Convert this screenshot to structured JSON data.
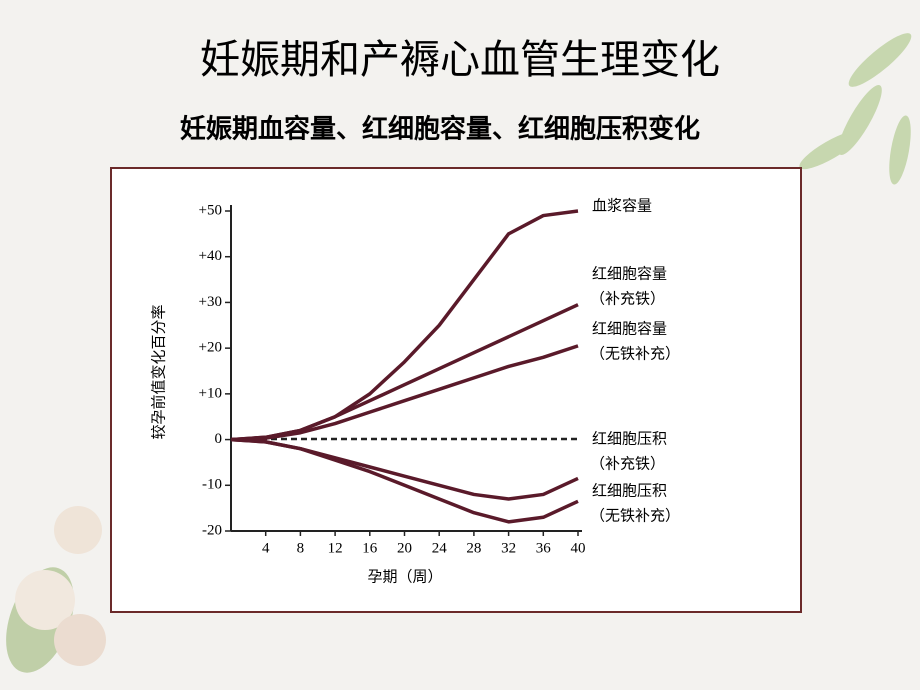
{
  "slide": {
    "title": "妊娠期和产褥心血管生理变化"
  },
  "chart_data": {
    "type": "line",
    "title": "妊娠期血容量、红细胞容量、红细胞压积变化",
    "x_label": "孕期（周）",
    "y_label": "较孕前值变化百分率",
    "x": [
      0,
      4,
      8,
      12,
      16,
      20,
      24,
      28,
      32,
      36,
      40
    ],
    "xlim": [
      0,
      40
    ],
    "xticks": [
      4,
      8,
      12,
      16,
      20,
      24,
      28,
      32,
      36,
      40
    ],
    "ylim": [
      -20,
      50
    ],
    "yticks": [
      {
        "value": 50,
        "label": "+50"
      },
      {
        "value": 40,
        "label": "+40"
      },
      {
        "value": 30,
        "label": "+30"
      },
      {
        "value": 20,
        "label": "+20"
      },
      {
        "value": 10,
        "label": "+10"
      },
      0,
      -10,
      -20
    ],
    "series": [
      {
        "name": "血浆容量",
        "color": "#5a1a2a",
        "values": [
          0,
          0.5,
          2,
          5,
          10,
          17,
          25,
          35,
          45,
          49,
          50
        ]
      },
      {
        "name": "红细胞容量",
        "note": "（补充铁）",
        "color": "#5a1a2a",
        "values": [
          0,
          0.5,
          2,
          5,
          8.5,
          12,
          15.5,
          19,
          22.5,
          26,
          29.5
        ]
      },
      {
        "name": "红细胞容量",
        "note": "（无铁补充）",
        "color": "#5a1a2a",
        "values": [
          0,
          0.3,
          1.5,
          3.5,
          6,
          8.5,
          11,
          13.5,
          16,
          18,
          20.5
        ]
      },
      {
        "name": "红细胞压积",
        "note": "（补充铁）",
        "color": "#5a1a2a",
        "values": [
          0,
          -0.5,
          -2,
          -4,
          -6,
          -8,
          -10,
          -12,
          -13,
          -12,
          -8.5
        ]
      },
      {
        "name": "红细胞压积",
        "note": "（无铁补充）",
        "color": "#5a1a2a",
        "values": [
          0,
          -0.5,
          -2,
          -4.5,
          -7,
          -10,
          -13,
          -16,
          -18,
          -17,
          -13.5
        ]
      }
    ]
  }
}
